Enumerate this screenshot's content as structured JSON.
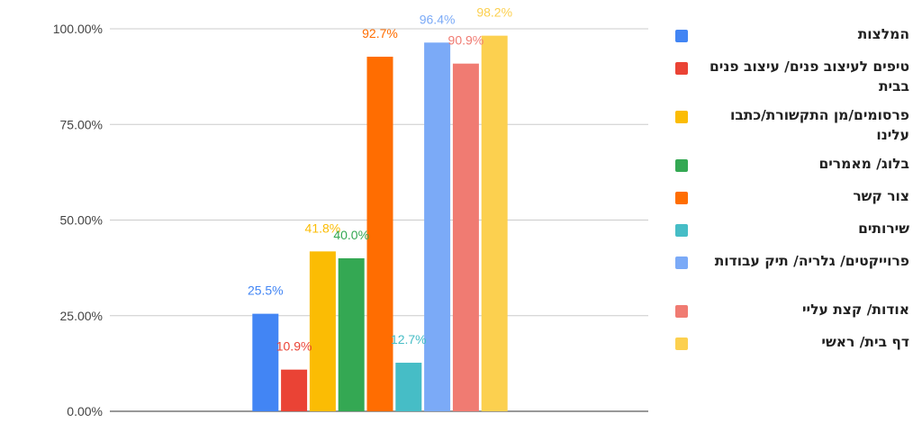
{
  "chart_data": {
    "type": "bar",
    "title": "",
    "xlabel": "",
    "ylabel": "",
    "ylim": [
      0,
      100
    ],
    "y_ticks": [
      "0.00%",
      "25.00%",
      "50.00%",
      "75.00%",
      "100.00%"
    ],
    "y_tick_values": [
      0,
      25,
      50,
      75,
      100
    ],
    "grid": true,
    "legend_position": "right",
    "series": [
      {
        "name": "המלצות",
        "value": 25.5,
        "label": "25.5%",
        "color": "#4285f4"
      },
      {
        "name": "טיפים לעיצוב פנים/ עיצוב פנים בבית",
        "value": 10.9,
        "label": "10.9%",
        "color": "#ea4335"
      },
      {
        "name": "פרסומים/מן התקשורת/כתבו עלינו",
        "value": 41.8,
        "label": "41.8%",
        "color": "#fbbc04"
      },
      {
        "name": "בלוג/ מאמרים",
        "value": 40.0,
        "label": "40.0%",
        "color": "#34a853"
      },
      {
        "name": "צור קשר",
        "value": 92.7,
        "label": "92.7%",
        "color": "#ff6d01"
      },
      {
        "name": "שירותים",
        "value": 12.7,
        "label": "12.7%",
        "color": "#46bdc6"
      },
      {
        "name": "פרוייקטים/ גלריה/ תיק עבודות",
        "value": 96.4,
        "label": "96.4%",
        "color": "#7baaf7"
      },
      {
        "name": "אודות/ קצת עליי",
        "value": 90.9,
        "label": "90.9%",
        "color": "#f07b72"
      },
      {
        "name": "דף בית/ ראשי",
        "value": 98.2,
        "label": "98.2%",
        "color": "#fcd04f"
      }
    ]
  }
}
